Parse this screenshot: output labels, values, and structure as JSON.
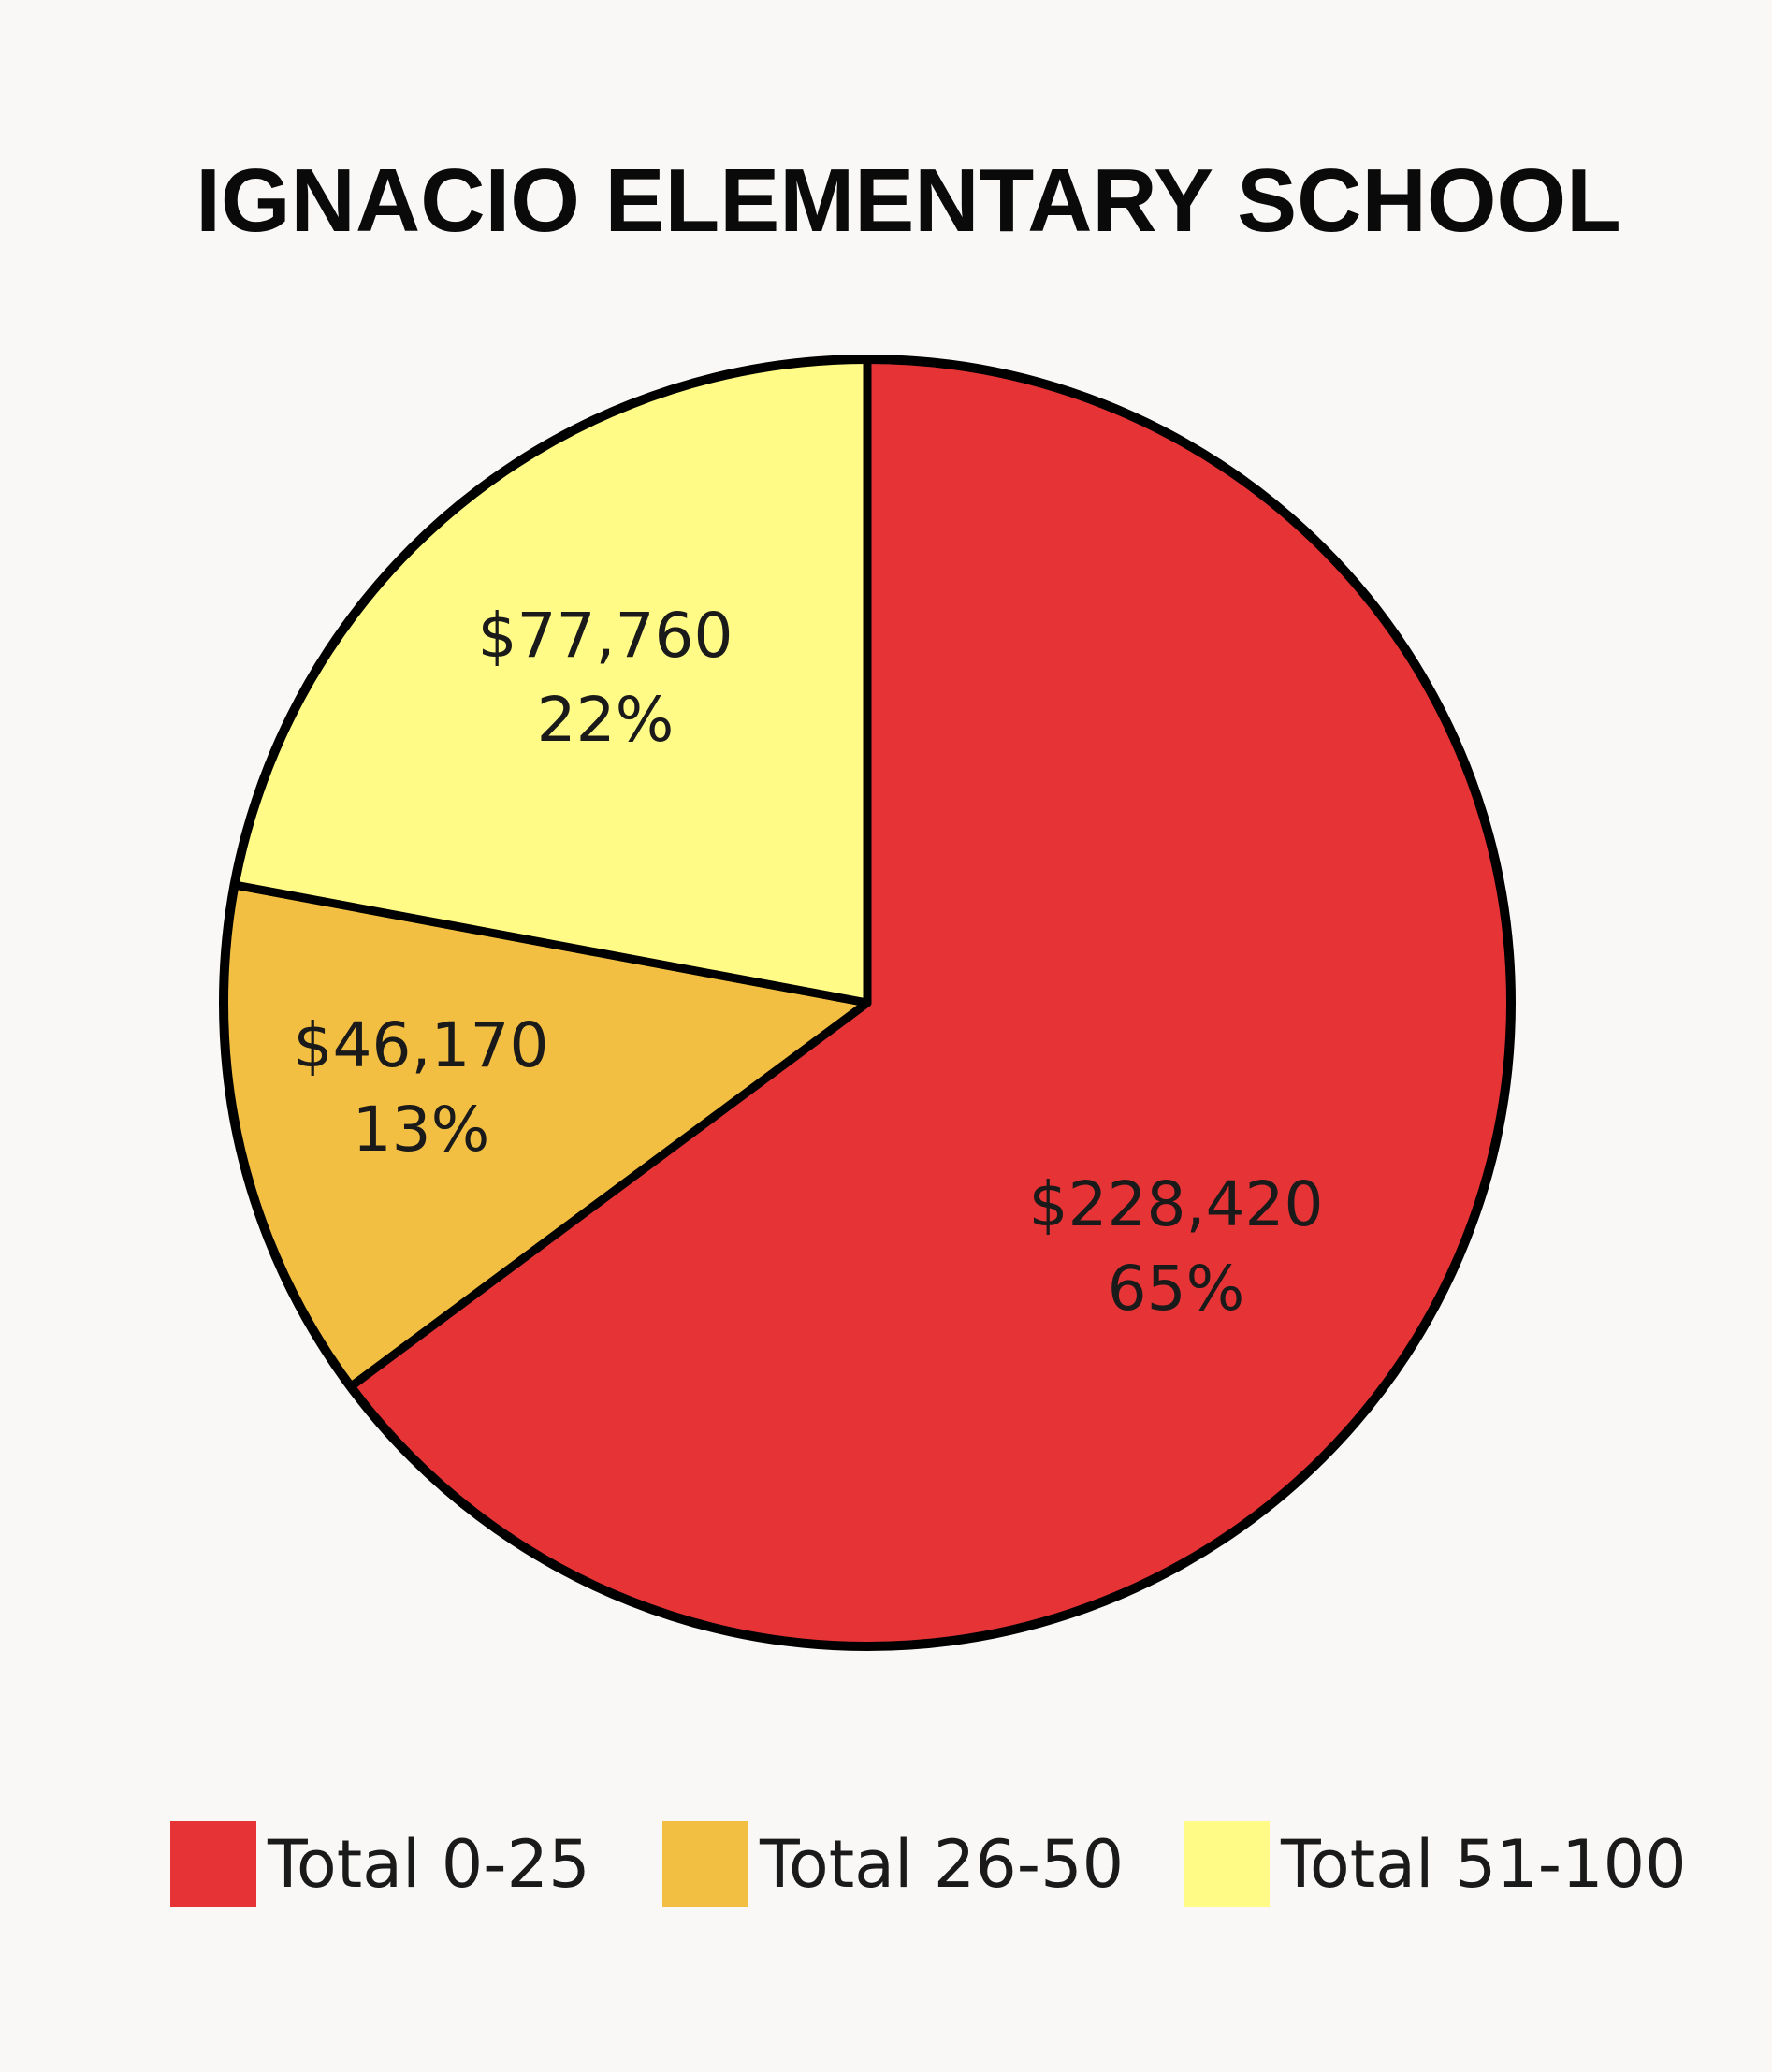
{
  "chart_data": {
    "type": "pie",
    "title": "IGNACIO ELEMENTARY SCHOOL",
    "slices": [
      {
        "name": "Total 0-25",
        "value": 228420,
        "value_label": "$228,420",
        "percent_label": "65%",
        "color": "#e63436"
      },
      {
        "name": "Total 26-50",
        "value": 46170,
        "value_label": "$46,170",
        "percent_label": "13%",
        "color": "#f2bf42"
      },
      {
        "name": "Total 51-100",
        "value": 77760,
        "value_label": "$77,760",
        "percent_label": "22%",
        "color": "#fffb86"
      }
    ],
    "start": "top",
    "direction": "clockwise",
    "outline_color": "#000000",
    "legend": {
      "placement": "bottom"
    }
  }
}
